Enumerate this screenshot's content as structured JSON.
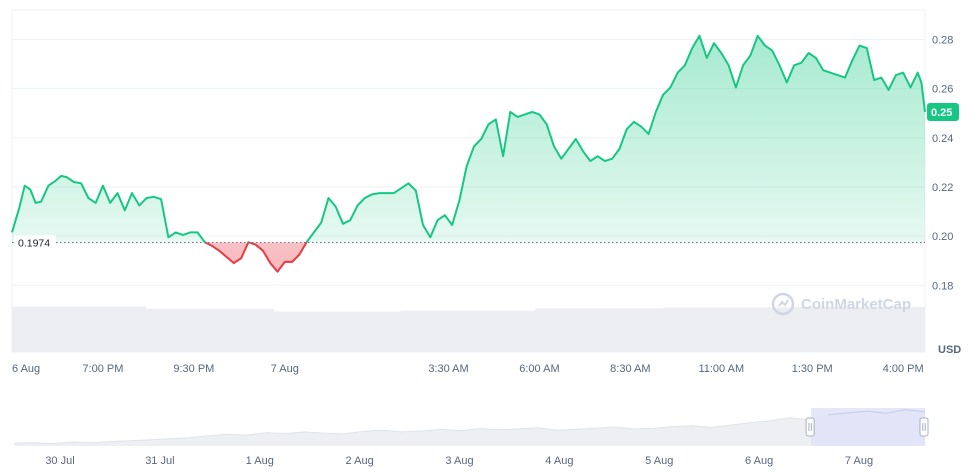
{
  "chart_data": {
    "type": "area",
    "baseline": 0.1974,
    "baseline_label": "0.1974",
    "current_price_label": "0.25",
    "currency": "USD",
    "watermark": "CoinMarketCap",
    "ylim": [
      0.174,
      0.292
    ],
    "y_ticks": [
      0.18,
      0.2,
      0.22,
      0.24,
      0.26,
      0.28
    ],
    "y_tick_labels": [
      "0.18",
      "0.20",
      "0.22",
      "0.24",
      "0.26",
      "0.28"
    ],
    "x_tick_labels": [
      "6 Aug",
      "7:00 PM",
      "9:30 PM",
      "7 Aug",
      "3:30 AM",
      "6:00 AM",
      "8:30 AM",
      "11:00 AM",
      "1:30 PM",
      "4:00 PM"
    ],
    "x_tick_hours": [
      0,
      2.5,
      5,
      7.5,
      12,
      14.5,
      17,
      19.5,
      22,
      24.5
    ],
    "series": [
      {
        "x": [
          0,
          0.2,
          0.35,
          0.5,
          0.65,
          0.8,
          1.0,
          1.2,
          1.35,
          1.5,
          1.7,
          1.9,
          2.1,
          2.3,
          2.5,
          2.7,
          2.9,
          3.1,
          3.3,
          3.5,
          3.7,
          3.9,
          4.1,
          4.3,
          4.5,
          4.7,
          4.9,
          5.1,
          5.3,
          5.5,
          5.7,
          5.9,
          6.1,
          6.3,
          6.5,
          6.7,
          6.9,
          7.1,
          7.3,
          7.5,
          7.7,
          7.9,
          8.1,
          8.3,
          8.5,
          8.7,
          8.9,
          9.1,
          9.3,
          9.5,
          9.7,
          9.9,
          10.1,
          10.3,
          10.5,
          10.7,
          10.9,
          11.1,
          11.3,
          11.5,
          11.7,
          11.9,
          12.1,
          12.3,
          12.5,
          12.7,
          12.9,
          13.1,
          13.3,
          13.5,
          13.7,
          13.9,
          14.1,
          14.3,
          14.5,
          14.7,
          14.9,
          15.1,
          15.3,
          15.5,
          15.7,
          15.9,
          16.1,
          16.3,
          16.5,
          16.7,
          16.9,
          17.1,
          17.3,
          17.5,
          17.7,
          17.9,
          18.1,
          18.3,
          18.5,
          18.7,
          18.9,
          19.1,
          19.3,
          19.5,
          19.7,
          19.9,
          20.1,
          20.3,
          20.5,
          20.7,
          20.9,
          21.1,
          21.3,
          21.5,
          21.7,
          21.9,
          22.1,
          22.3,
          22.5,
          22.7,
          22.9,
          23.1,
          23.3,
          23.5,
          23.7,
          23.9,
          24.1,
          24.3,
          24.5,
          24.7,
          24.9,
          25.0,
          25.1
        ],
        "values": [
          0.2015,
          0.2115,
          0.2205,
          0.219,
          0.2135,
          0.214,
          0.2205,
          0.2225,
          0.2245,
          0.224,
          0.222,
          0.2215,
          0.2155,
          0.2135,
          0.2205,
          0.2135,
          0.2175,
          0.2105,
          0.2175,
          0.2125,
          0.2155,
          0.216,
          0.215,
          0.1995,
          0.2015,
          0.2005,
          0.2015,
          0.2015,
          0.1975,
          0.196,
          0.194,
          0.1915,
          0.189,
          0.191,
          0.1975,
          0.1965,
          0.194,
          0.189,
          0.1855,
          0.1895,
          0.1895,
          0.1925,
          0.1975,
          0.2015,
          0.2055,
          0.2155,
          0.212,
          0.205,
          0.2065,
          0.2125,
          0.2155,
          0.217,
          0.2175,
          0.2175,
          0.2175,
          0.2195,
          0.2215,
          0.2185,
          0.2045,
          0.1995,
          0.2065,
          0.2085,
          0.2045,
          0.2145,
          0.2285,
          0.2365,
          0.2395,
          0.2455,
          0.2475,
          0.2325,
          0.2505,
          0.2485,
          0.2495,
          0.2505,
          0.2495,
          0.2455,
          0.2365,
          0.2315,
          0.2355,
          0.2395,
          0.2345,
          0.2305,
          0.2325,
          0.2305,
          0.2315,
          0.2355,
          0.2435,
          0.2465,
          0.2445,
          0.2415,
          0.2505,
          0.2575,
          0.2605,
          0.2665,
          0.2695,
          0.2765,
          0.2815,
          0.2725,
          0.2785,
          0.2745,
          0.2695,
          0.2605,
          0.2695,
          0.2735,
          0.2815,
          0.2775,
          0.2755,
          0.2695,
          0.2625,
          0.2695,
          0.2705,
          0.2745,
          0.2725,
          0.2675,
          0.2665,
          0.2655,
          0.2645,
          0.2715,
          0.2775,
          0.2765,
          0.2635,
          0.2645,
          0.2595,
          0.2655,
          0.2665,
          0.2605,
          0.2665,
          0.2625,
          0.2505
        ]
      }
    ],
    "volume_note_values": [
      0.97,
      0.92,
      0.86,
      0.88,
      0.93,
      0.95,
      0.96
    ],
    "navigator": {
      "x_tick_labels": [
        "30 Jul",
        "31 Jul",
        "1 Aug",
        "2 Aug",
        "3 Aug",
        "4 Aug",
        "5 Aug",
        "6 Aug",
        "7 Aug"
      ],
      "values": [
        0.175,
        0.176,
        0.174,
        0.178,
        0.176,
        0.179,
        0.181,
        0.183,
        0.186,
        0.188,
        0.193,
        0.197,
        0.195,
        0.201,
        0.199,
        0.203,
        0.2,
        0.198,
        0.204,
        0.207,
        0.203,
        0.205,
        0.209,
        0.206,
        0.211,
        0.208,
        0.21,
        0.213,
        0.207,
        0.209,
        0.212,
        0.215,
        0.21,
        0.212,
        0.216,
        0.218,
        0.214,
        0.22,
        0.226,
        0.23,
        0.238,
        0.233,
        0.245,
        0.25,
        0.254,
        0.249,
        0.258,
        0.252
      ],
      "selection_start_fraction": 0.875
    },
    "colors": {
      "up": "#16c784",
      "down": "#ea3943",
      "label_bg": "#16c784",
      "grid": "#eff2f5"
    }
  }
}
